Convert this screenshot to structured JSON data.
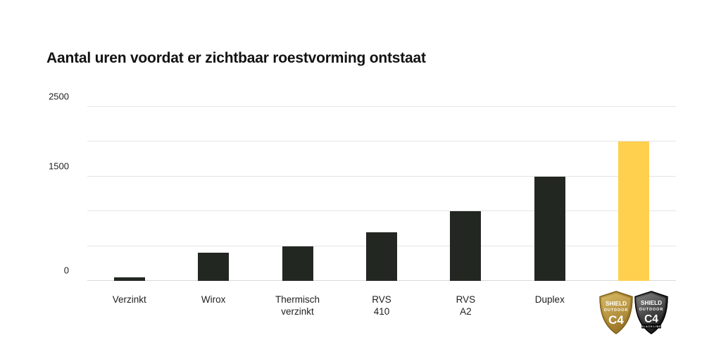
{
  "page": {
    "background": "#ffffff"
  },
  "title": "Aantal uren voordat er zichtbaar roestvorming ontstaat",
  "chart_data": {
    "type": "bar",
    "title": "Aantal uren voordat er zichtbaar roestvorming ontstaat",
    "categories": [
      "Verzinkt",
      "Wirox",
      "Thermisch\nverzinkt",
      "RVS\n410",
      "RVS\nA2",
      "Duplex",
      "Shield Outdoor C4 / C4 Blackline"
    ],
    "values": [
      50,
      400,
      500,
      700,
      1000,
      1500,
      2000
    ],
    "xlabel": "",
    "ylabel": "",
    "ylim": [
      0,
      2500
    ],
    "gridline_step": 500,
    "grid": true,
    "legend": "none",
    "yticks_labeled": [
      {
        "value": 0,
        "label": "0"
      },
      {
        "value": 1500,
        "label": "1500"
      },
      {
        "value": 2500,
        "label": "2500"
      }
    ],
    "bar_color": "#232721",
    "highlight_color": "#ffd04d",
    "highlight_index": 6,
    "badge_category_index": 6
  },
  "badges": {
    "gold": {
      "name": "Shield Outdoor C4",
      "line1": "SHIELD",
      "line2": "OUTDOOR",
      "line3": "C4",
      "color_main": "#ad8a35",
      "color_dark": "#7d611d"
    },
    "black": {
      "name": "Shield Outdoor C4 Blackline",
      "line1": "SHIELD",
      "line2": "OUTDOOR",
      "line3": "C4",
      "line4": "BLACKLINE",
      "color_main": "#2a2a2a",
      "color_dark": "#000000"
    }
  }
}
